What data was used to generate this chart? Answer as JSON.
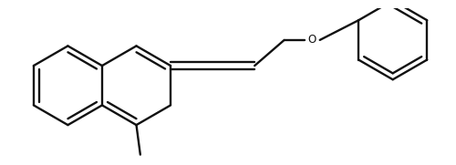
{
  "bg_color": "#ffffff",
  "line_color": "#111111",
  "lw": 1.7,
  "fig_width": 5.0,
  "fig_height": 1.81,
  "dpi": 100
}
